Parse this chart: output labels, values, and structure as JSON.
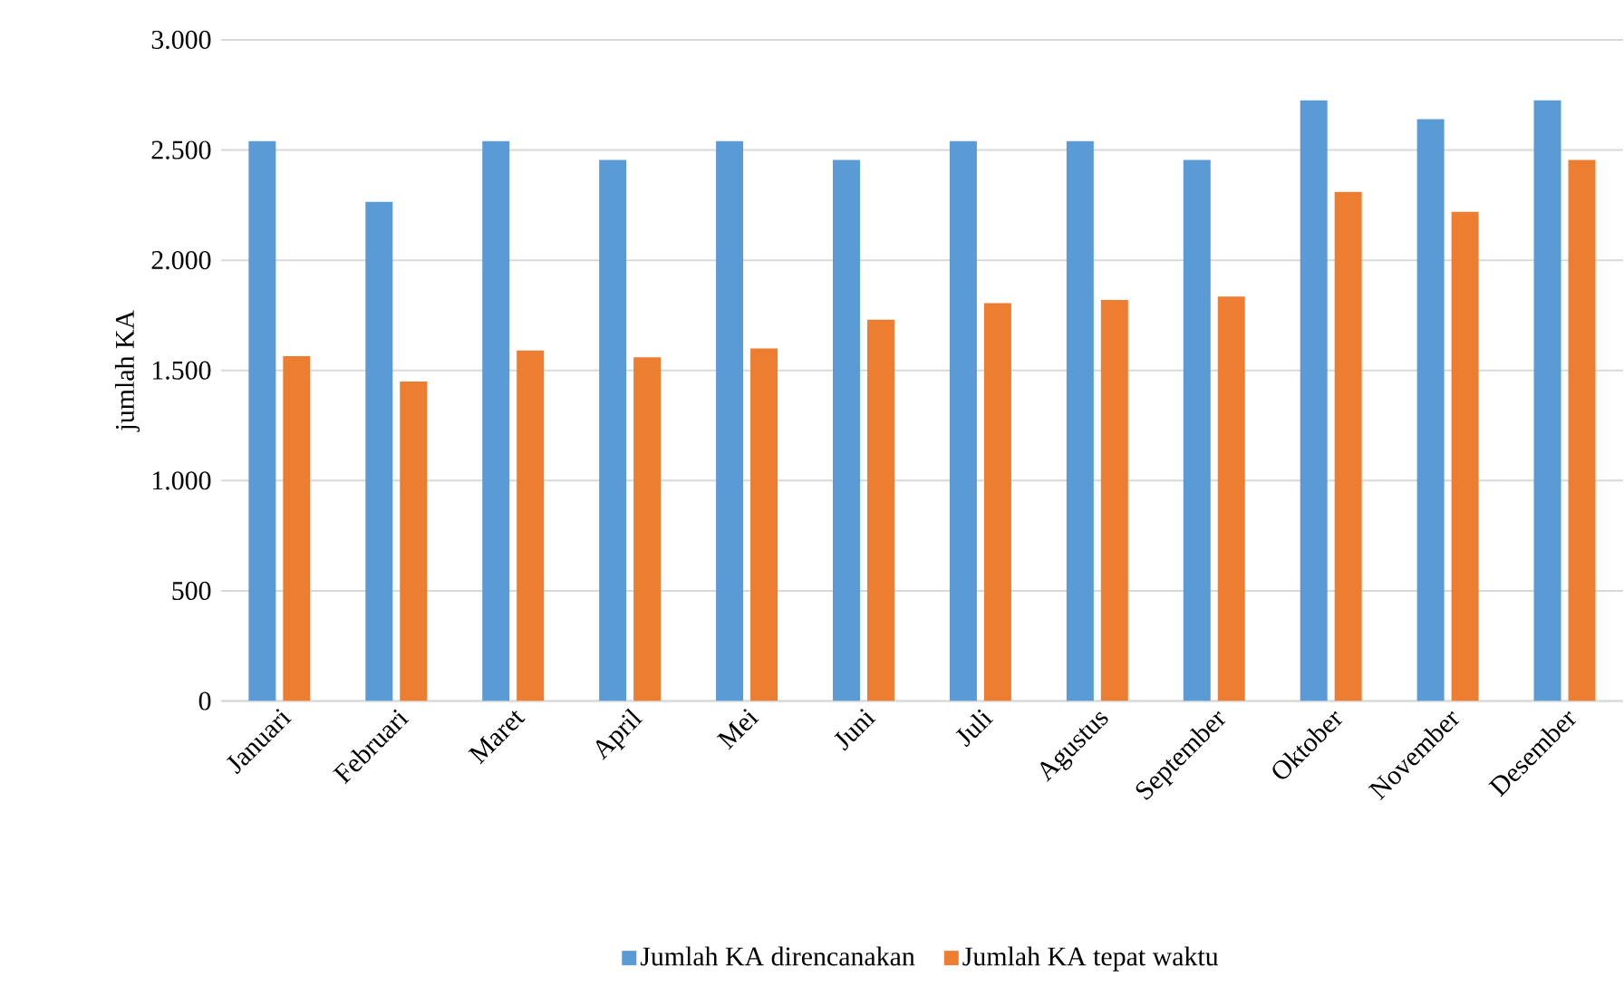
{
  "chart_data": {
    "type": "bar",
    "ylabel": "jumlah KA",
    "categories": [
      "Januari",
      "Februari",
      "Maret",
      "April",
      "Mei",
      "Juni",
      "Juli",
      "Agustus",
      "September",
      "Oktober",
      "November",
      "Desember"
    ],
    "series": [
      {
        "name": "Jumlah KA direncanakan",
        "color": "#5b9bd5",
        "values": [
          2540,
          2265,
          2540,
          2455,
          2540,
          2455,
          2540,
          2540,
          2455,
          2725,
          2640,
          2725
        ]
      },
      {
        "name": "Jumlah KA tepat waktu",
        "color": "#ed7d31",
        "values": [
          1565,
          1450,
          1590,
          1560,
          1600,
          1730,
          1805,
          1820,
          1835,
          2310,
          2220,
          2455
        ]
      }
    ],
    "ylim": [
      0,
      3000
    ],
    "yticks": [
      {
        "value": 0,
        "label": "0"
      },
      {
        "value": 500,
        "label": "500"
      },
      {
        "value": 1000,
        "label": "1.000"
      },
      {
        "value": 1500,
        "label": "1.500"
      },
      {
        "value": 2000,
        "label": "2.000"
      },
      {
        "value": 2500,
        "label": "2.500"
      },
      {
        "value": 3000,
        "label": "3.000"
      }
    ],
    "grid": "y",
    "legend": "bottom"
  }
}
